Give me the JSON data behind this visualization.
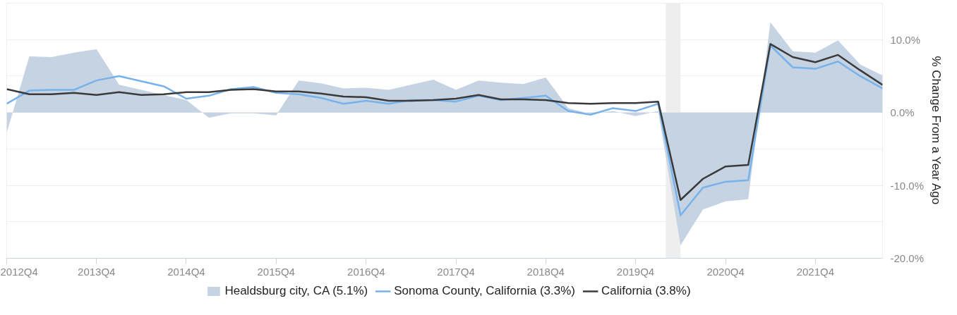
{
  "chart_data": {
    "type": "line",
    "ylabel": "% Change From a Year Ago",
    "x": [
      "2012-10-01",
      "2013-01-01",
      "2013-04-01",
      "2013-07-01",
      "2013-10-01",
      "2014-01-01",
      "2014-04-01",
      "2014-07-01",
      "2014-10-01",
      "2015-01-01",
      "2015-04-01",
      "2015-07-01",
      "2015-10-01",
      "2016-01-01",
      "2016-04-01",
      "2016-07-01",
      "2016-10-01",
      "2017-01-01",
      "2017-04-01",
      "2017-07-01",
      "2017-10-01",
      "2018-01-01",
      "2018-04-01",
      "2018-07-01",
      "2018-10-01",
      "2019-01-01",
      "2019-04-01",
      "2019-07-01",
      "2019-10-01",
      "2020-01-01",
      "2020-04-01",
      "2020-07-01",
      "2020-10-01",
      "2021-01-01",
      "2021-04-01",
      "2021-07-01",
      "2021-10-01",
      "2022-01-01",
      "2022-04-01",
      "2022-07-01"
    ],
    "series": [
      {
        "name": "Healdsburg city, CA (5.1%)",
        "type": "area",
        "color": "#c5d3e3",
        "values": [
          -2.8,
          7.7,
          7.6,
          8.2,
          8.7,
          3.8,
          3.1,
          2.4,
          1.7,
          -0.7,
          -0.1,
          -0.1,
          -0.4,
          4.4,
          4.0,
          3.3,
          3.4,
          3.1,
          3.8,
          4.5,
          3.1,
          4.4,
          4.1,
          3.9,
          4.8,
          0.6,
          -0.2,
          0.2,
          -0.5,
          0.2,
          -18.2,
          -13.3,
          -12.2,
          -11.9,
          12.4,
          8.4,
          8.2,
          9.9,
          6.6,
          5.1
        ]
      },
      {
        "name": "Sonoma County, California (3.3%)",
        "color": "#78b2ea",
        "values": [
          1.2,
          3.0,
          3.1,
          3.1,
          4.4,
          5.0,
          4.3,
          3.6,
          1.9,
          2.3,
          3.2,
          3.5,
          2.7,
          2.5,
          2.0,
          1.2,
          1.6,
          1.2,
          1.7,
          1.7,
          1.5,
          2.3,
          1.7,
          2.0,
          2.3,
          0.2,
          -0.3,
          0.6,
          0.2,
          1.2,
          -14.1,
          -10.3,
          -9.5,
          -9.3,
          9.2,
          6.2,
          6.0,
          7.0,
          5.0,
          3.3
        ]
      },
      {
        "name": "California (3.8%)",
        "color": "#3a3a3a",
        "values": [
          3.2,
          2.5,
          2.5,
          2.7,
          2.4,
          2.8,
          2.4,
          2.5,
          2.8,
          2.8,
          3.1,
          3.2,
          2.9,
          2.9,
          2.6,
          2.2,
          2.1,
          1.6,
          1.6,
          1.7,
          1.9,
          2.4,
          1.8,
          1.8,
          1.7,
          1.3,
          1.2,
          1.3,
          1.3,
          1.5,
          -12.0,
          -9.1,
          -7.4,
          -7.2,
          9.4,
          7.6,
          6.9,
          7.9,
          5.8,
          3.8
        ]
      }
    ],
    "xlim": [
      "2012-10-01",
      "2022-07-01"
    ],
    "xticks": [
      {
        "value": "2012-10-01",
        "label": "2012Q4"
      },
      {
        "value": "2013-10-01",
        "label": "2013Q4"
      },
      {
        "value": "2014-10-01",
        "label": "2014Q4"
      },
      {
        "value": "2015-10-01",
        "label": "2015Q4"
      },
      {
        "value": "2016-10-01",
        "label": "2016Q4"
      },
      {
        "value": "2017-10-01",
        "label": "2017Q4"
      },
      {
        "value": "2018-10-01",
        "label": "2018Q4"
      },
      {
        "value": "2019-10-01",
        "label": "2019Q4"
      },
      {
        "value": "2020-10-01",
        "label": "2020Q4"
      },
      {
        "value": "2021-10-01",
        "label": "2021Q4"
      }
    ],
    "ylim": [
      -20,
      15
    ],
    "yticks": [
      {
        "value": -20,
        "label": "-20.0%"
      },
      {
        "value": -15,
        "label": null
      },
      {
        "value": -10,
        "label": "-10.0%"
      },
      {
        "value": -5,
        "label": null
      },
      {
        "value": 0,
        "label": "0.0%"
      },
      {
        "value": 5,
        "label": null
      },
      {
        "value": 10,
        "label": "10.0%"
      },
      {
        "value": 15,
        "label": null
      }
    ],
    "bands": [
      {
        "axis": "x",
        "from": "2020-02-01",
        "to": "2020-04-01",
        "color": "#eeeeee"
      }
    ],
    "grid": "y",
    "legend": "bottom"
  }
}
